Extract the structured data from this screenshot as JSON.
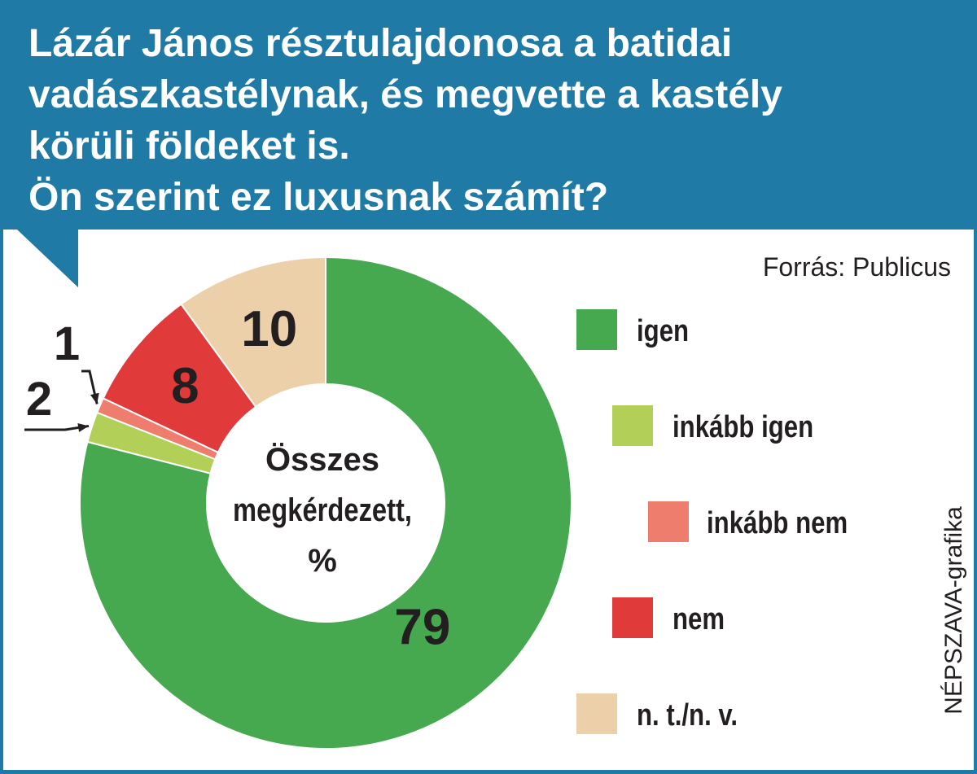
{
  "title_lines": [
    "Lázár János résztulajdonosa a batidai",
    "vadászkastélynak, és megvette a kastély",
    "körüli földeket is.",
    "Ön szerint ez luxusnak számít?"
  ],
  "source": "Forrás: Publicus",
  "credit": "NÉPSZAVA-grafika",
  "chart_data": {
    "type": "pie",
    "center_label": [
      "Összes",
      "megkérdezett,",
      "%"
    ],
    "slices": [
      {
        "label": "igen",
        "value": 79,
        "display": "79",
        "color": "#46a84f"
      },
      {
        "label": "inkább igen",
        "value": 2,
        "display": "2",
        "color": "#b2cf58"
      },
      {
        "label": "inkább nem",
        "value": 1,
        "display": "1",
        "color": "#ee7d6e"
      },
      {
        "label": "nem",
        "value": 8,
        "display": "8",
        "color": "#e03b3a"
      },
      {
        "label": "n. t./n. v.",
        "value": 10,
        "display": "10",
        "color": "#ecd0a9"
      }
    ],
    "legend_order": [
      "igen",
      "inkább igen",
      "inkább nem",
      "nem",
      "n. t./n. v."
    ],
    "legend_placement": "right"
  }
}
